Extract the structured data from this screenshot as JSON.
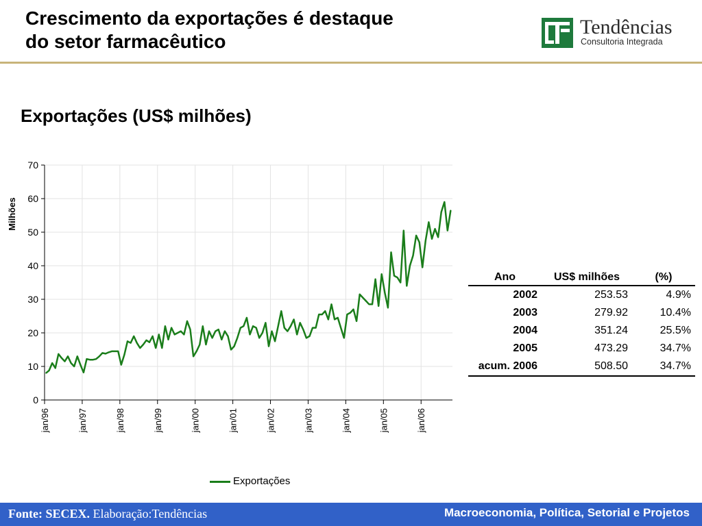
{
  "header": {
    "title_line1": "Crescimento da exportações é destaque",
    "title_line2": "do setor farmacêutico",
    "logo_name": "Tendências",
    "logo_sub": "Consultoria Integrada",
    "rule_color": "#c8b47a",
    "logo_color": "#1e7a3c"
  },
  "subtitle": "Exportações (US$ milhões)",
  "chart_data": {
    "type": "line",
    "title": "",
    "ylabel": "Milhões",
    "xlabel": "",
    "ylim": [
      0,
      70
    ],
    "yticks": [
      0,
      10,
      20,
      30,
      40,
      50,
      60,
      70
    ],
    "xtick_labels": [
      "jan/96",
      "jan/97",
      "jan/98",
      "jan/99",
      "jan/00",
      "jan/01",
      "jan/02",
      "jan/03",
      "jan/04",
      "jan/05",
      "jan/06"
    ],
    "x_start": "1996-01",
    "x_end": "2006-10",
    "grid": true,
    "legend_position": "bottom",
    "series": [
      {
        "name": "Exportações",
        "color": "#1a7d1a",
        "values": [
          8,
          8.8,
          11,
          9.5,
          13.7,
          12.5,
          11.5,
          13,
          11,
          10,
          13,
          10.5,
          8.2,
          12.2,
          12,
          12,
          12.2,
          13,
          14,
          13.8,
          14.2,
          14.5,
          14.5,
          14.5,
          10.5,
          13.5,
          17.5,
          17,
          19,
          17,
          15.5,
          16.5,
          17.8,
          17.2,
          19,
          15.5,
          19.5,
          15.5,
          22,
          18,
          21.5,
          19.5,
          20,
          20.5,
          19.5,
          23.5,
          21,
          13,
          14.5,
          16.5,
          22,
          16.5,
          20.5,
          18.5,
          20.5,
          21,
          18,
          20.5,
          19,
          15,
          16,
          18.5,
          21.5,
          22,
          24.5,
          19.5,
          22,
          21.5,
          18.5,
          20,
          23,
          16,
          20.5,
          17.5,
          22,
          26.5,
          21.5,
          20.5,
          22,
          24,
          19.5,
          23,
          21,
          18.5,
          19,
          21.5,
          21.5,
          25.5,
          25.5,
          26.5,
          24,
          28.5,
          24,
          24.5,
          21.5,
          18.5,
          25.5,
          26,
          27,
          23.5,
          31.5,
          30.5,
          29.5,
          28.5,
          28.5,
          36,
          28,
          37.5,
          32,
          27.5,
          44,
          37,
          36.5,
          35,
          50.5,
          34,
          40,
          43,
          49,
          47,
          39.5,
          47.5,
          53,
          48,
          51,
          48.5,
          56,
          59,
          50.5,
          56.5
        ]
      }
    ]
  },
  "legend": {
    "label": "Exportações"
  },
  "table": {
    "headers": [
      "Ano",
      "US$ milhões",
      "(%)"
    ],
    "rows": [
      [
        "2002",
        "253.53",
        "4.9%"
      ],
      [
        "2003",
        "279.92",
        "10.4%"
      ],
      [
        "2004",
        "351.24",
        "25.5%"
      ],
      [
        "2005",
        "473.29",
        "34.7%"
      ],
      [
        "acum. 2006",
        "508.50",
        "34.7%"
      ]
    ]
  },
  "footer": {
    "source_label": "Fonte: SECEX.",
    "source_text": " Elaboração:Tendências",
    "tagline": "Macroeconomia, Política, Setorial e Projetos",
    "bar_color": "#3161c8"
  }
}
